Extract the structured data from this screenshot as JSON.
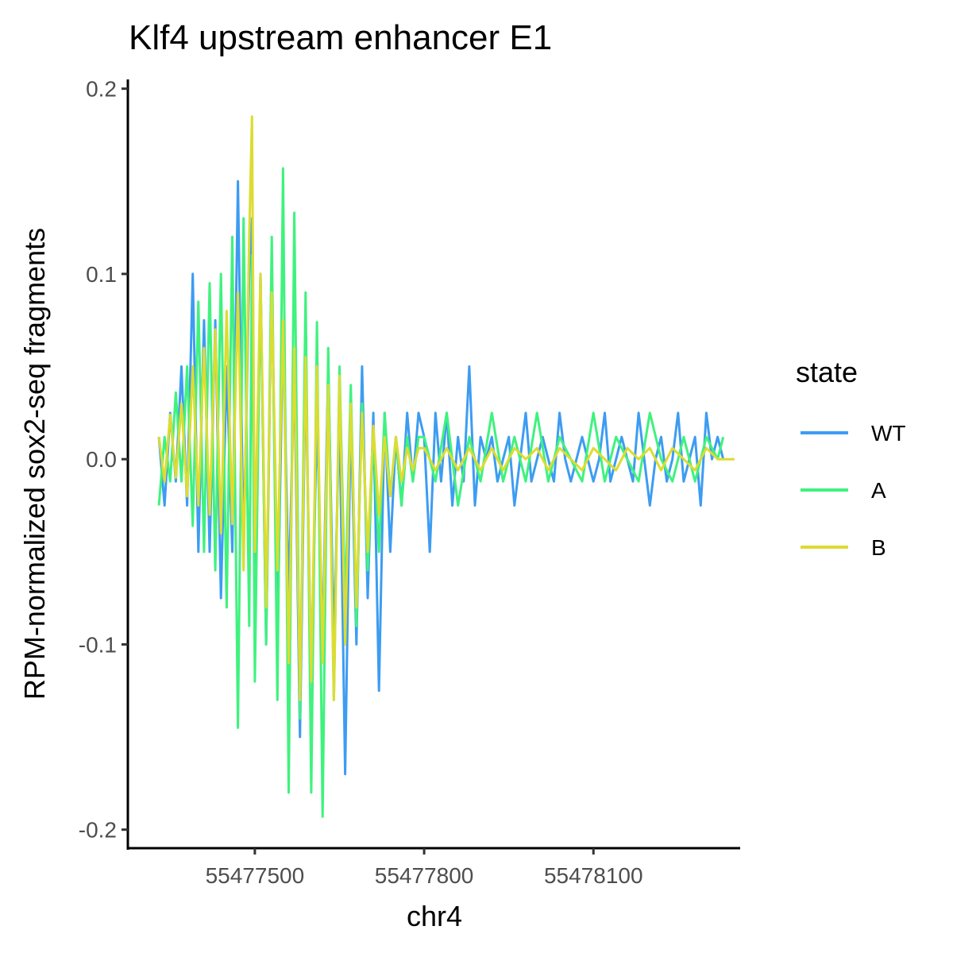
{
  "chart_data": {
    "type": "line",
    "title": "Klf4 upstream enhancer E1",
    "xlabel": "chr4",
    "ylabel": "RPM-normalized sox2-seq fragments",
    "xlim": [
      55477275,
      55478360
    ],
    "ylim": [
      -0.21,
      0.205
    ],
    "x_ticks": [
      55477500,
      55477800,
      55478100
    ],
    "x_tick_labels": [
      "55477500",
      "55477800",
      "55478100"
    ],
    "y_ticks": [
      -0.2,
      -0.1,
      0.0,
      0.1,
      0.2
    ],
    "y_tick_labels": [
      "-0.2",
      "-0.1",
      "0.0",
      "0.1",
      "0.2"
    ],
    "grid": false,
    "legend": {
      "title": "state",
      "position": "right"
    },
    "series": [
      {
        "name": "WT",
        "color": "#3d9cf2",
        "x": [
          55477330,
          55477340,
          55477350,
          55477360,
          55477370,
          55477380,
          55477390,
          55477400,
          55477410,
          55477420,
          55477430,
          55477440,
          55477450,
          55477460,
          55477470,
          55477480,
          55477490,
          55477495,
          55477500,
          55477510,
          55477520,
          55477530,
          55477540,
          55477550,
          55477560,
          55477570,
          55477580,
          55477590,
          55477600,
          55477610,
          55477620,
          55477630,
          55477640,
          55477650,
          55477660,
          55477670,
          55477680,
          55477690,
          55477700,
          55477710,
          55477720,
          55477730,
          55477740,
          55477750,
          55477760,
          55477770,
          55477780,
          55477790,
          55477800,
          55477810,
          55477820,
          55477830,
          55477840,
          55477850,
          55477860,
          55477870,
          55477880,
          55477890,
          55477900,
          55477910,
          55477920,
          55477930,
          55477940,
          55477950,
          55477960,
          55477970,
          55477980,
          55477990,
          55478000,
          55478010,
          55478020,
          55478030,
          55478040,
          55478050,
          55478060,
          55478070,
          55478080,
          55478090,
          55478100,
          55478110,
          55478120,
          55478130,
          55478140,
          55478150,
          55478160,
          55478170,
          55478180,
          55478190,
          55478200,
          55478210,
          55478220,
          55478230,
          55478240,
          55478250,
          55478260,
          55478270,
          55478280,
          55478290,
          55478300,
          55478310,
          55478320,
          55478330
        ],
        "y": [
          0.012,
          -0.025,
          0.025,
          -0.012,
          0.05,
          -0.025,
          0.1,
          -0.05,
          0.075,
          -0.05,
          0.075,
          -0.075,
          0.05,
          -0.05,
          0.15,
          -0.05,
          0.1,
          0.13,
          -0.075,
          0.1,
          -0.1,
          0.1,
          -0.1,
          0.075,
          -0.075,
          0.05,
          -0.15,
          0.05,
          -0.12,
          0.025,
          -0.1,
          0.05,
          -0.1,
          0.025,
          -0.17,
          0.025,
          -0.1,
          0.05,
          -0.075,
          0.025,
          -0.125,
          0.025,
          -0.05,
          0.012,
          -0.025,
          0.025,
          -0.012,
          0.025,
          0.012,
          -0.05,
          0.025,
          -0.012,
          0.025,
          -0.025,
          0.012,
          -0.012,
          0.05,
          -0.025,
          0.012,
          0.0,
          0.012,
          -0.012,
          0.0,
          0.012,
          -0.025,
          0.0,
          0.025,
          -0.012,
          0.0,
          0.012,
          0.0,
          -0.012,
          0.025,
          0.0,
          -0.012,
          0.0,
          0.012,
          0.0,
          -0.012,
          0.0,
          0.025,
          -0.012,
          0.0,
          0.012,
          0.0,
          -0.012,
          0.025,
          0.0,
          -0.025,
          0.0,
          0.012,
          -0.012,
          0.0,
          0.025,
          -0.012,
          0.0,
          0.012,
          -0.025,
          0.025,
          0.0,
          0.012,
          0.0
        ]
      },
      {
        "name": "A",
        "color": "#3ff27e",
        "x": [
          55477330,
          55477340,
          55477350,
          55477360,
          55477370,
          55477380,
          55477390,
          55477400,
          55477410,
          55477420,
          55477430,
          55477440,
          55477450,
          55477460,
          55477470,
          55477480,
          55477490,
          55477495,
          55477500,
          55477510,
          55477520,
          55477530,
          55477540,
          55477550,
          55477560,
          55477570,
          55477580,
          55477590,
          55477600,
          55477610,
          55477620,
          55477630,
          55477640,
          55477650,
          55477660,
          55477670,
          55477680,
          55477690,
          55477700,
          55477710,
          55477720,
          55477730,
          55477740,
          55477750,
          55477760,
          55477770,
          55477780,
          55477790,
          55477800,
          55477820,
          55477840,
          55477860,
          55477880,
          55477900,
          55477920,
          55477940,
          55477960,
          55477980,
          55478000,
          55478020,
          55478040,
          55478060,
          55478080,
          55478100,
          55478120,
          55478140,
          55478160,
          55478180,
          55478200,
          55478220,
          55478240,
          55478260,
          55478280,
          55478300,
          55478320,
          55478330
        ],
        "y": [
          -0.025,
          0.012,
          -0.012,
          0.036,
          -0.012,
          0.05,
          -0.036,
          0.085,
          -0.05,
          0.095,
          -0.06,
          0.1,
          -0.08,
          0.12,
          -0.145,
          0.13,
          -0.09,
          0.11,
          -0.12,
          0.1,
          -0.1,
          0.12,
          -0.13,
          0.157,
          -0.18,
          0.133,
          -0.14,
          0.09,
          -0.18,
          0.074,
          -0.193,
          0.06,
          -0.13,
          0.05,
          -0.08,
          0.04,
          -0.09,
          0.03,
          -0.06,
          0.012,
          -0.05,
          0.025,
          -0.02,
          0.012,
          -0.025,
          0.012,
          -0.012,
          0.012,
          0.012,
          -0.012,
          0.025,
          -0.025,
          0.012,
          -0.012,
          0.025,
          -0.012,
          0.012,
          -0.012,
          0.025,
          -0.012,
          0.012,
          0.0,
          -0.012,
          0.025,
          -0.012,
          0.012,
          0.0,
          -0.012,
          0.025,
          0.0,
          -0.012,
          0.012,
          -0.012,
          0.012,
          0.0,
          0.012
        ]
      },
      {
        "name": "B",
        "color": "#dcdc32",
        "x": [
          55477330,
          55477340,
          55477350,
          55477360,
          55477370,
          55477380,
          55477390,
          55477400,
          55477410,
          55477420,
          55477430,
          55477440,
          55477450,
          55477460,
          55477470,
          55477480,
          55477490,
          55477495,
          55477500,
          55477510,
          55477520,
          55477530,
          55477540,
          55477550,
          55477560,
          55477570,
          55477580,
          55477590,
          55477600,
          55477610,
          55477620,
          55477630,
          55477640,
          55477650,
          55477660,
          55477670,
          55477680,
          55477690,
          55477700,
          55477710,
          55477720,
          55477730,
          55477740,
          55477750,
          55477760,
          55477770,
          55477780,
          55477790,
          55477800,
          55477820,
          55477840,
          55477860,
          55477880,
          55477900,
          55477920,
          55477940,
          55477960,
          55477980,
          55478000,
          55478020,
          55478040,
          55478060,
          55478080,
          55478100,
          55478120,
          55478140,
          55478160,
          55478180,
          55478200,
          55478220,
          55478240,
          55478260,
          55478280,
          55478300,
          55478320,
          55478340,
          55478350
        ],
        "y": [
          0.012,
          -0.012,
          0.024,
          -0.01,
          0.03,
          -0.02,
          0.05,
          -0.025,
          0.06,
          -0.03,
          0.07,
          -0.04,
          0.08,
          -0.035,
          0.09,
          -0.06,
          0.12,
          0.185,
          -0.05,
          0.1,
          -0.08,
          0.09,
          -0.06,
          0.075,
          -0.11,
          0.06,
          -0.13,
          0.055,
          -0.12,
          0.05,
          -0.11,
          0.04,
          -0.13,
          0.045,
          -0.1,
          0.03,
          -0.08,
          0.025,
          -0.05,
          0.018,
          -0.03,
          0.012,
          -0.02,
          0.012,
          -0.012,
          0.006,
          -0.006,
          0.006,
          0.006,
          -0.006,
          0.006,
          -0.006,
          0.006,
          -0.006,
          0.006,
          -0.006,
          0.006,
          0.0,
          0.006,
          -0.006,
          0.006,
          0.0,
          -0.006,
          0.006,
          0.0,
          -0.006,
          0.006,
          0.0,
          0.006,
          -0.006,
          0.006,
          0.0,
          -0.006,
          0.006,
          0.0,
          0.0,
          0.0
        ]
      }
    ]
  }
}
